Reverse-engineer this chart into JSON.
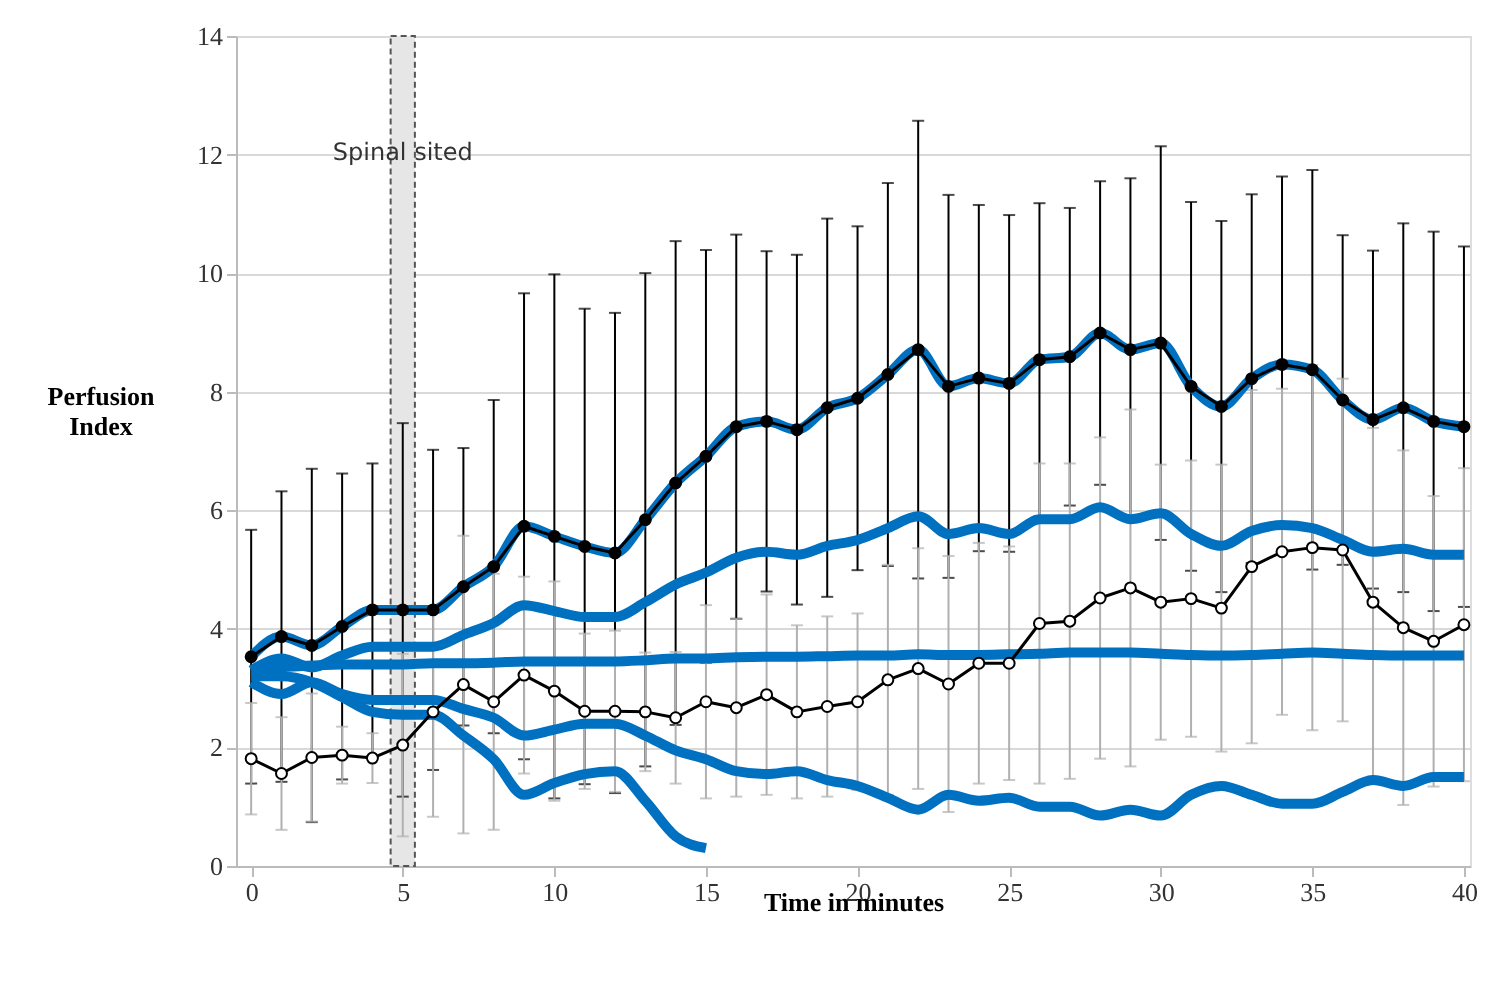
{
  "chart_data": {
    "type": "line",
    "xlabel": "Time in minutes",
    "ylabel": "Perfusion Index",
    "xlim": [
      -0.5,
      40.2
    ],
    "xticks": [
      0,
      5,
      10,
      15,
      20,
      25,
      30,
      35,
      40
    ],
    "ylim": [
      0,
      14
    ],
    "yticks": [
      0,
      2,
      4,
      6,
      8,
      10,
      12,
      14
    ],
    "grid": "y",
    "x": [
      0,
      1,
      2,
      3,
      4,
      5,
      6,
      7,
      8,
      9,
      10,
      11,
      12,
      13,
      14,
      15,
      16,
      17,
      18,
      19,
      20,
      21,
      22,
      23,
      24,
      25,
      26,
      27,
      28,
      29,
      30,
      31,
      32,
      33,
      34,
      35,
      36,
      37,
      38,
      39,
      40
    ],
    "bands": [
      {
        "axis": "x",
        "from": 4.6,
        "to": 5.4,
        "label": "Spinal sited",
        "color": "#e6e6e6"
      }
    ],
    "series": [
      {
        "color": "#000000",
        "marker": "circle",
        "values": [
          3.53,
          3.87,
          3.72,
          4.04,
          4.32,
          4.32,
          4.32,
          4.71,
          5.05,
          5.73,
          5.56,
          5.39,
          5.28,
          5.84,
          6.46,
          6.91,
          7.41,
          7.5,
          7.36,
          7.73,
          7.89,
          8.29,
          8.71,
          8.09,
          8.23,
          8.14,
          8.54,
          8.59,
          8.99,
          8.71,
          8.82,
          8.09,
          7.75,
          8.22,
          8.46,
          8.37,
          7.86,
          7.53,
          7.73,
          7.5,
          7.41
        ],
        "errors": [
          2.14,
          2.45,
          2.98,
          2.58,
          2.47,
          3.15,
          2.7,
          2.34,
          2.81,
          3.93,
          4.42,
          4.01,
          4.05,
          4.16,
          4.08,
          3.48,
          3.24,
          2.87,
          2.95,
          3.19,
          2.9,
          3.23,
          3.86,
          3.23,
          2.92,
          2.84,
          2.64,
          2.51,
          2.56,
          2.89,
          3.32,
          3.11,
          3.13,
          3.11,
          3.17,
          3.37,
          2.78,
          2.85,
          3.11,
          3.2,
          3.04
        ]
      },
      {
        "color": "#000000",
        "marker": "circle",
        "values": [
          1.81,
          1.56,
          1.83,
          1.87,
          1.82,
          2.04,
          2.6,
          3.06,
          2.77,
          3.22,
          2.95,
          2.61,
          2.61,
          2.6,
          2.5,
          2.77,
          2.67,
          2.89,
          2.6,
          2.69,
          2.77,
          3.14,
          3.33,
          3.07,
          3.42,
          3.42,
          4.09,
          4.13,
          4.52,
          4.69,
          4.45,
          4.51,
          4.35,
          5.05,
          5.3,
          5.37,
          5.33,
          4.45,
          4.02,
          3.79,
          4.07
        ],
        "errors": [
          0.94,
          0.95,
          1.08,
          0.48,
          0.42,
          1.54,
          1.77,
          2.51,
          2.16,
          1.66,
          1.85,
          1.31,
          1.36,
          1.0,
          1.11,
          1.63,
          1.5,
          1.69,
          1.46,
          1.52,
          1.49,
          1.94,
          2.03,
          2.16,
          2.03,
          1.97,
          2.7,
          2.66,
          2.71,
          3.01,
          2.32,
          2.33,
          2.42,
          2.98,
          2.75,
          3.08,
          2.89,
          2.94,
          2.99,
          2.45,
          2.64
        ]
      },
      {
        "color": "#0070c0",
        "values": [
          3.53,
          3.87,
          3.72,
          4.04,
          4.32,
          4.32,
          4.32,
          4.71,
          5.05,
          5.73,
          5.56,
          5.39,
          5.28,
          5.84,
          6.46,
          6.91,
          7.41,
          7.5,
          7.36,
          7.73,
          7.89,
          8.29,
          8.71,
          8.09,
          8.23,
          8.14,
          8.54,
          8.59,
          8.99,
          8.71,
          8.82,
          8.09,
          7.75,
          8.22,
          8.46,
          8.37,
          7.86,
          7.53,
          7.73,
          7.5,
          7.41
        ]
      },
      {
        "color": "#0070c0",
        "values": [
          3.3,
          3.5,
          3.35,
          3.55,
          3.7,
          3.7,
          3.7,
          3.9,
          4.1,
          4.4,
          4.3,
          4.2,
          4.2,
          4.45,
          4.75,
          4.95,
          5.2,
          5.3,
          5.25,
          5.4,
          5.5,
          5.7,
          5.9,
          5.6,
          5.7,
          5.6,
          5.85,
          5.85,
          6.05,
          5.85,
          5.95,
          5.6,
          5.4,
          5.65,
          5.75,
          5.7,
          5.5,
          5.3,
          5.35,
          5.25,
          5.25
        ]
      },
      {
        "color": "#0070c0",
        "values": [
          3.3,
          3.35,
          3.38,
          3.4,
          3.4,
          3.4,
          3.42,
          3.42,
          3.43,
          3.45,
          3.45,
          3.45,
          3.45,
          3.47,
          3.5,
          3.5,
          3.52,
          3.53,
          3.53,
          3.54,
          3.55,
          3.55,
          3.57,
          3.56,
          3.56,
          3.57,
          3.58,
          3.6,
          3.6,
          3.6,
          3.58,
          3.56,
          3.55,
          3.56,
          3.58,
          3.6,
          3.58,
          3.56,
          3.55,
          3.55,
          3.55
        ]
      },
      {
        "color": "#0070c0",
        "values": [
          3.1,
          2.9,
          3.1,
          2.9,
          2.8,
          2.8,
          2.8,
          2.65,
          2.5,
          2.2,
          2.3,
          2.4,
          2.4,
          2.2,
          1.95,
          1.8,
          1.6,
          1.55,
          1.6,
          1.45,
          1.35,
          1.15,
          0.95,
          1.2,
          1.1,
          1.15,
          1.0,
          1.0,
          0.85,
          0.95,
          0.85,
          1.2,
          1.35,
          1.2,
          1.05,
          1.05,
          1.25,
          1.45,
          1.35,
          1.5,
          1.5
        ]
      },
      {
        "color": "#0070c0",
        "values": [
          3.2,
          3.2,
          3.1,
          2.85,
          2.6,
          2.55,
          2.55,
          2.2,
          1.8,
          1.2,
          1.4,
          1.55,
          1.6,
          1.1,
          0.5,
          0.3,
          null,
          null,
          null,
          null,
          null,
          null,
          null,
          null,
          null,
          null,
          null,
          null,
          null,
          null,
          null,
          null,
          null,
          null,
          null,
          null,
          null,
          null,
          null,
          null,
          null
        ]
      }
    ]
  }
}
